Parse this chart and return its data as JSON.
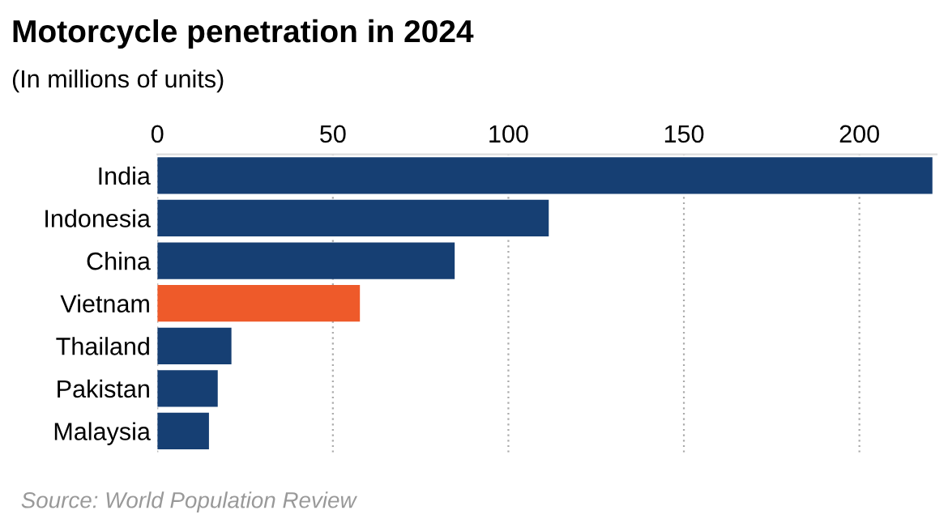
{
  "chart_data": {
    "type": "bar",
    "orientation": "horizontal",
    "title": "Motorcycle penetration in 2024",
    "subtitle": "(In millions of units)",
    "categories": [
      "India",
      "Indonesia",
      "China",
      "Vietnam",
      "Thailand",
      "Pakistan",
      "Malaysia"
    ],
    "values": [
      220.8,
      111.5,
      84.7,
      57.7,
      21.1,
      17.2,
      14.7
    ],
    "colors": [
      "#163f73",
      "#163f73",
      "#163f73",
      "#ee5a2a",
      "#163f73",
      "#163f73",
      "#163f73"
    ],
    "xlim": [
      0,
      222
    ],
    "xticks": [
      0,
      50,
      100,
      150,
      200
    ],
    "grid": "x",
    "annotations": [
      "Source: World Population Review"
    ]
  }
}
